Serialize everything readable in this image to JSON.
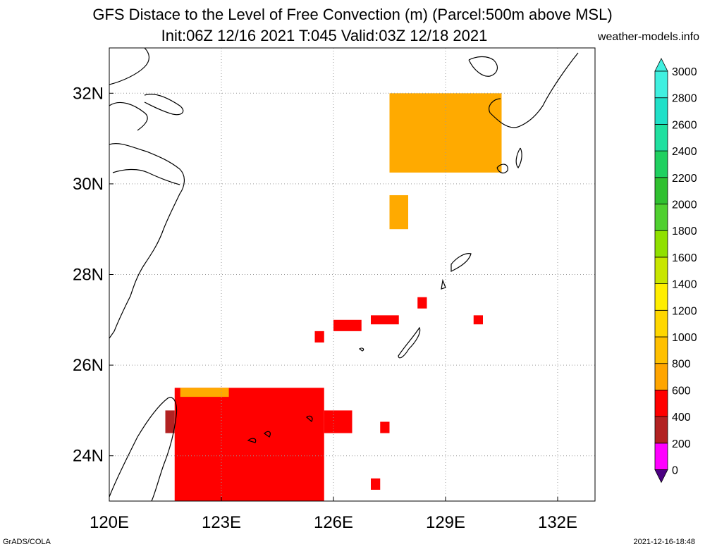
{
  "title_line1": "GFS Distace to the Level of Free Convection (m) (Parcel:500m above MSL)",
  "title_line2": "Init:06Z 12/16 2021 T:045 Valid:03Z 12/18 2021",
  "credit": "weather-models.info",
  "footer_left": "GrADS/COLA",
  "footer_right": "2021-12-16-18:48",
  "map": {
    "lon_range": [
      120,
      133
    ],
    "lat_range": [
      23,
      33
    ],
    "x_ticks": [
      {
        "lon": 120,
        "label": "120E"
      },
      {
        "lon": 123,
        "label": "123E"
      },
      {
        "lon": 126,
        "label": "126E"
      },
      {
        "lon": 129,
        "label": "129E"
      },
      {
        "lon": 132,
        "label": "132E"
      }
    ],
    "y_ticks": [
      {
        "lat": 24,
        "label": "24N"
      },
      {
        "lat": 26,
        "label": "26N"
      },
      {
        "lat": 28,
        "label": "28N"
      },
      {
        "lat": 30,
        "label": "30N"
      },
      {
        "lat": 32,
        "label": "32N"
      }
    ],
    "grid": true,
    "shaded_regions": [
      {
        "name": "south-red-block",
        "color": "#ff0000",
        "lon": [
          121.75,
          125.75
        ],
        "lat": [
          23,
          25.5
        ]
      },
      {
        "name": "south-red-east",
        "color": "#ff0000",
        "lon": [
          125.75,
          126.5
        ],
        "lat": [
          24.5,
          25
        ]
      },
      {
        "name": "south-orange-strip",
        "color": "#ffaa00",
        "lon": [
          121.9,
          123.2
        ],
        "lat": [
          25.3,
          25.5
        ]
      },
      {
        "name": "south-brown",
        "color": "#b22222",
        "lon": [
          121.5,
          121.75
        ],
        "lat": [
          24.5,
          25
        ]
      },
      {
        "name": "east-china-sea-orange",
        "color": "#ffaa00",
        "lon": [
          127.5,
          130.5
        ],
        "lat": [
          30.25,
          32
        ]
      },
      {
        "name": "mid-orange",
        "color": "#ffaa00",
        "lon": [
          127.5,
          128
        ],
        "lat": [
          29.0,
          29.75
        ]
      },
      {
        "name": "ryukyu-red-1",
        "color": "#ff0000",
        "lon": [
          127.0,
          127.75
        ],
        "lat": [
          26.9,
          27.1
        ]
      },
      {
        "name": "ryukyu-red-2",
        "color": "#ff0000",
        "lon": [
          126.0,
          126.75
        ],
        "lat": [
          26.75,
          27
        ]
      },
      {
        "name": "ryukyu-red-3",
        "color": "#ff0000",
        "lon": [
          128.25,
          128.5
        ],
        "lat": [
          27.25,
          27.5
        ]
      },
      {
        "name": "ryukyu-red-4",
        "color": "#ff0000",
        "lon": [
          129.75,
          130.0
        ],
        "lat": [
          26.9,
          27.1
        ]
      },
      {
        "name": "ryukyu-red-5",
        "color": "#ff0000",
        "lon": [
          125.5,
          125.75
        ],
        "lat": [
          26.5,
          26.75
        ]
      },
      {
        "name": "small-red-1",
        "color": "#ff0000",
        "lon": [
          127.25,
          127.5
        ],
        "lat": [
          24.5,
          24.75
        ]
      },
      {
        "name": "small-red-2",
        "color": "#ff0000",
        "lon": [
          127.0,
          127.25
        ],
        "lat": [
          23.25,
          23.5
        ]
      }
    ]
  },
  "colorbar": {
    "labels": [
      "0",
      "200",
      "400",
      "600",
      "800",
      "1000",
      "1200",
      "1400",
      "1600",
      "1800",
      "2000",
      "2200",
      "2400",
      "2600",
      "2800",
      "3000"
    ],
    "colors": [
      "#4b0082",
      "#ff00ff",
      "#b22222",
      "#ff0000",
      "#ffa500",
      "#ffc000",
      "#ffd700",
      "#ffee00",
      "#c8e600",
      "#90e000",
      "#50d030",
      "#30c030",
      "#20d060",
      "#20e0a0",
      "#20e0c8",
      "#40f0e0"
    ]
  }
}
